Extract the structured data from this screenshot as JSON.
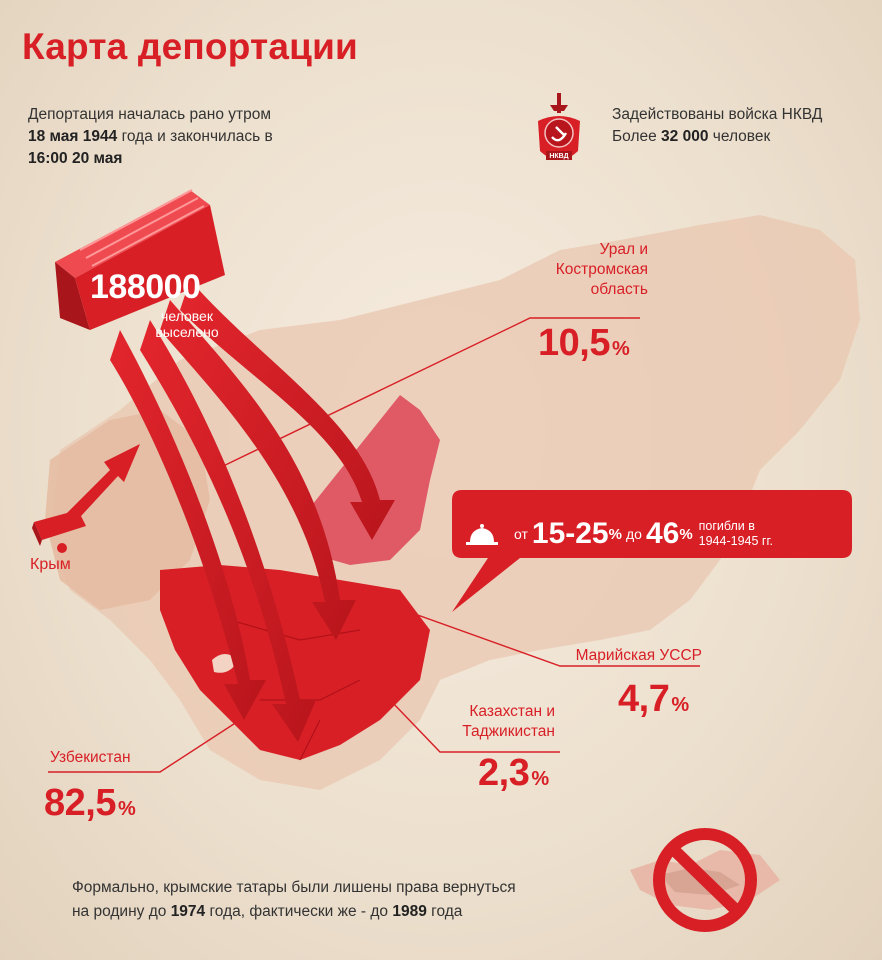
{
  "title": "Карта депортации",
  "intro": {
    "line1": "Депортация началась рано утром",
    "date_start": "18 мая 1944",
    "line2_rest": " года и закончилась в",
    "time_end": "16:00 20 мая"
  },
  "nkvd": {
    "emblem_text": "НКВД",
    "line1": "Задействованы войска НКВД",
    "line2_prefix": "Более ",
    "count": "32 000",
    "line2_suffix": " человек"
  },
  "total": {
    "number_a": "188",
    "number_b": "000",
    "caption_line1": "человек",
    "caption_line2": "выселено"
  },
  "crimea": {
    "label": "Крым"
  },
  "regions": [
    {
      "name_lines": [
        "Урал и",
        "Костромская",
        "область"
      ],
      "value": "10,5",
      "unit": "%"
    },
    {
      "name_lines": [
        "Марийская УССР"
      ],
      "value": "4,7",
      "unit": "%"
    },
    {
      "name_lines": [
        "Казахстан и",
        "Таджикистан"
      ],
      "value": "2,3",
      "unit": "%"
    },
    {
      "name_lines": [
        "Узбекистан"
      ],
      "value": "82,5",
      "unit": "%"
    }
  ],
  "deaths_callout": {
    "from_word": "от",
    "range": "15-25",
    "unit1": "%",
    "to_word": "до",
    "max": "46",
    "unit2": "%",
    "note_line1": "погибли в",
    "note_line2": "1944-1945 гг."
  },
  "footer": {
    "line1": "Формально, крымские татары были лишены права вернуться",
    "line2_a": "на родину до ",
    "year1": "1974",
    "line2_b": " года, фактически же - до ",
    "year2": "1989",
    "line2_c": " года"
  },
  "colors": {
    "accent": "#d81f26",
    "dark_red": "#a8151b",
    "pink": "#e05a66",
    "background": "#efe3d4",
    "text": "#333333"
  },
  "icons": [
    "nkvd-emblem-icon",
    "train-car-icon",
    "bell-icon",
    "ban-icon"
  ]
}
